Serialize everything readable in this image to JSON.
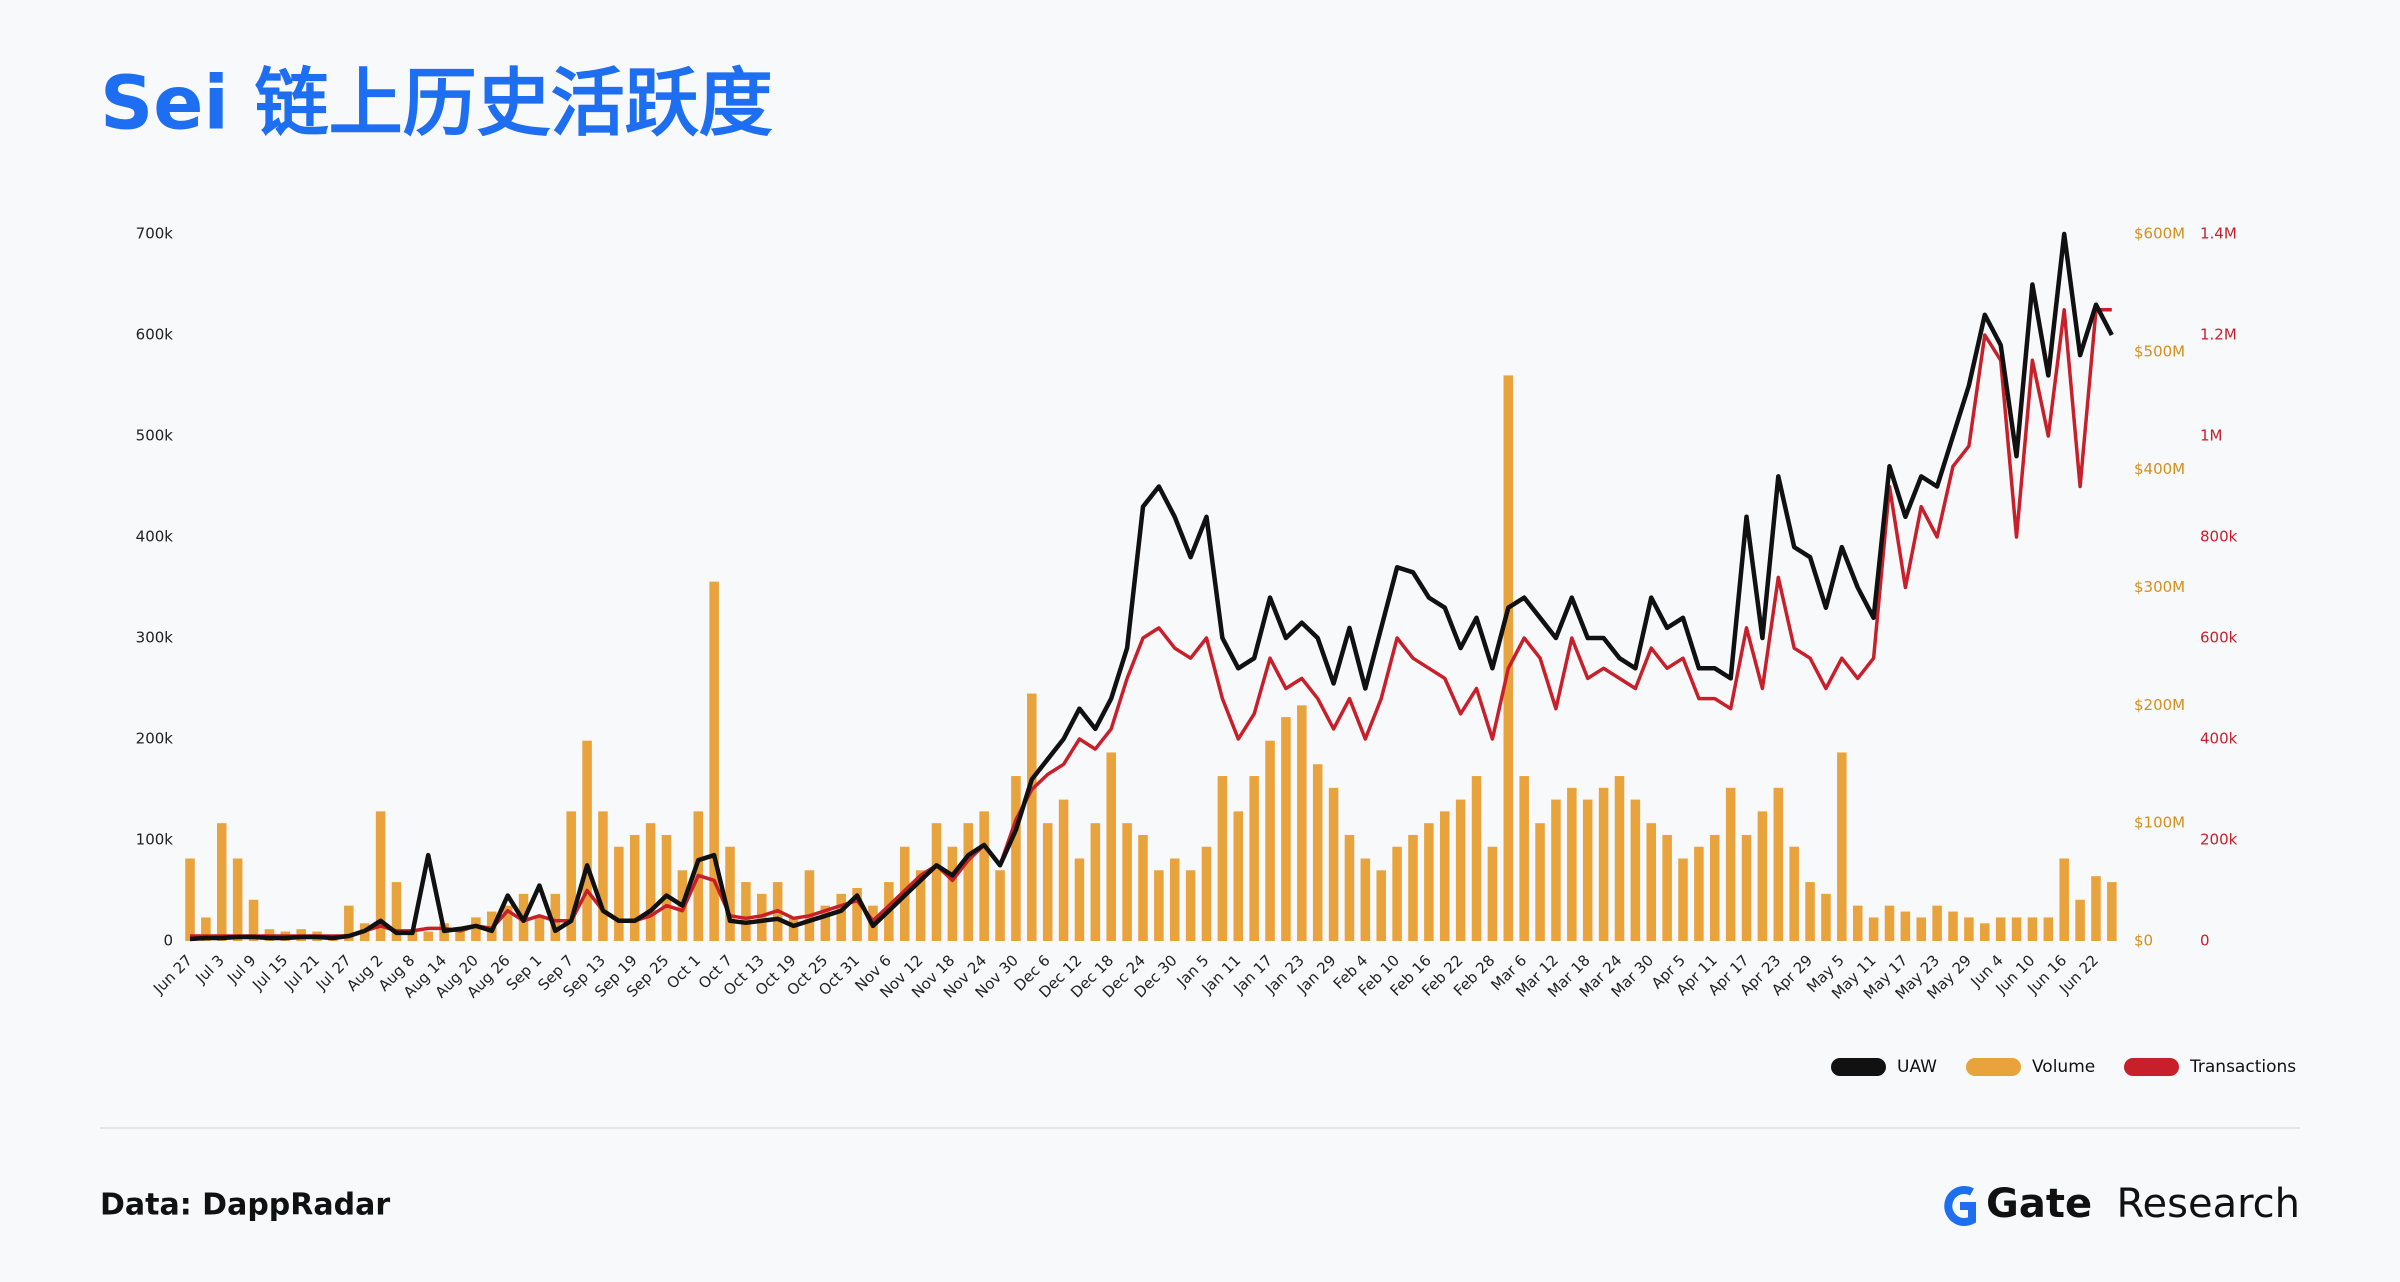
{
  "chart_data": {
    "type": "combo",
    "title": "Sei 链上历史活跃度",
    "categories": [
      "Jun 27",
      null,
      "Jul 3",
      null,
      "Jul 9",
      null,
      "Jul 15",
      null,
      "Jul 21",
      null,
      "Jul 27",
      null,
      "Aug 2",
      null,
      "Aug 8",
      null,
      "Aug 14",
      null,
      "Aug 20",
      null,
      "Aug 26",
      null,
      "Sep 1",
      null,
      "Sep 7",
      null,
      "Sep 13",
      null,
      "Sep 19",
      null,
      "Sep 25",
      null,
      "Oct 1",
      null,
      "Oct 7",
      null,
      "Oct 13",
      null,
      "Oct 19",
      null,
      "Oct 25",
      null,
      "Oct 31",
      null,
      "Nov 6",
      null,
      "Nov 12",
      null,
      "Nov 18",
      null,
      "Nov 24",
      null,
      "Nov 30",
      null,
      "Dec 6",
      null,
      "Dec 12",
      null,
      "Dec 18",
      null,
      "Dec 24",
      null,
      "Dec 30",
      null,
      "Jan 5",
      null,
      "Jan 11",
      null,
      "Jan 17",
      null,
      "Jan 23",
      null,
      "Jan 29",
      null,
      "Feb 4",
      null,
      "Feb 10",
      null,
      "Feb 16",
      null,
      "Feb 22",
      null,
      "Feb 28",
      null,
      "Mar 6",
      null,
      "Mar 12",
      null,
      "Mar 18",
      null,
      "Mar 24",
      null,
      "Mar 30",
      null,
      "Apr 5",
      null,
      "Apr 11",
      null,
      "Apr 17",
      null,
      "Apr 23",
      null,
      "Apr 29",
      null,
      "May 5",
      null,
      "May 11",
      null,
      "May 17",
      null,
      "May 23",
      null,
      "May 29",
      null,
      "Jun 4",
      null,
      "Jun 10",
      null,
      "Jun 16",
      null,
      "Jun 22",
      null
    ],
    "series": [
      {
        "name": "UAW",
        "type": "line",
        "color": "#111111",
        "values": [
          2000,
          3000,
          3000,
          4000,
          4000,
          3000,
          3000,
          4000,
          4000,
          3000,
          5000,
          10000,
          20000,
          8000,
          8000,
          85000,
          10000,
          12000,
          15000,
          10000,
          45000,
          20000,
          55000,
          10000,
          20000,
          75000,
          30000,
          20000,
          20000,
          30000,
          45000,
          35000,
          80000,
          85000,
          20000,
          18000,
          20000,
          22000,
          15000,
          20000,
          25000,
          30000,
          45000,
          15000,
          30000,
          45000,
          60000,
          75000,
          65000,
          85000,
          95000,
          75000,
          110000,
          160000,
          180000,
          200000,
          230000,
          210000,
          240000,
          290000,
          430000,
          450000,
          420000,
          380000,
          420000,
          300000,
          270000,
          280000,
          340000,
          300000,
          315000,
          300000,
          255000,
          310000,
          250000,
          310000,
          370000,
          365000,
          340000,
          330000,
          290000,
          320000,
          270000,
          330000,
          340000,
          320000,
          300000,
          340000,
          300000,
          300000,
          280000,
          270000,
          340000,
          310000,
          320000,
          270000,
          270000,
          260000,
          420000,
          300000,
          460000,
          390000,
          380000,
          330000,
          390000,
          350000,
          320000,
          470000,
          420000,
          460000,
          450000,
          500000,
          550000,
          620000,
          590000,
          480000,
          650000,
          560000,
          700000,
          580000,
          630000,
          600000
        ]
      },
      {
        "name": "Volume",
        "type": "bar",
        "axis": "y2",
        "color": "#e9a33c",
        "values": [
          70000000,
          20000000,
          100000000,
          70000000,
          35000000,
          10000000,
          8000000,
          10000000,
          8000000,
          5000000,
          30000000,
          15000000,
          110000000,
          50000000,
          10000000,
          8000000,
          15000000,
          10000000,
          20000000,
          25000000,
          30000000,
          40000000,
          20000000,
          40000000,
          110000000,
          170000000,
          110000000,
          80000000,
          90000000,
          100000000,
          90000000,
          60000000,
          110000000,
          305000000,
          80000000,
          50000000,
          40000000,
          50000000,
          20000000,
          60000000,
          30000000,
          40000000,
          45000000,
          30000000,
          50000000,
          80000000,
          60000000,
          100000000,
          80000000,
          100000000,
          110000000,
          60000000,
          140000000,
          210000000,
          100000000,
          120000000,
          70000000,
          100000000,
          160000000,
          100000000,
          90000000,
          60000000,
          70000000,
          60000000,
          80000000,
          140000000,
          110000000,
          140000000,
          170000000,
          190000000,
          200000000,
          150000000,
          130000000,
          90000000,
          70000000,
          60000000,
          80000000,
          90000000,
          100000000,
          110000000,
          120000000,
          140000000,
          80000000,
          480000000,
          140000000,
          100000000,
          120000000,
          130000000,
          120000000,
          130000000,
          140000000,
          120000000,
          100000000,
          90000000,
          70000000,
          80000000,
          90000000,
          130000000,
          90000000,
          110000000,
          130000000,
          80000000,
          50000000,
          40000000,
          160000000,
          30000000,
          20000000,
          30000000,
          25000000,
          20000000,
          30000000,
          25000000,
          20000000,
          15000000,
          20000000,
          20000000,
          20000000,
          20000000,
          70000000,
          35000000,
          55000000,
          50000000
        ]
      },
      {
        "name": "Transactions",
        "type": "line",
        "axis": "y3",
        "color": "#c8202a",
        "values": [
          10000,
          10000,
          10000,
          10000,
          10000,
          10000,
          10000,
          10000,
          10000,
          10000,
          10000,
          20000,
          30000,
          20000,
          20000,
          25000,
          25000,
          20000,
          30000,
          25000,
          60000,
          40000,
          50000,
          40000,
          40000,
          100000,
          60000,
          40000,
          40000,
          50000,
          70000,
          60000,
          130000,
          120000,
          50000,
          45000,
          50000,
          60000,
          45000,
          50000,
          60000,
          70000,
          80000,
          40000,
          70000,
          100000,
          130000,
          150000,
          120000,
          160000,
          190000,
          150000,
          240000,
          300000,
          330000,
          350000,
          400000,
          380000,
          420000,
          520000,
          600000,
          620000,
          580000,
          560000,
          600000,
          480000,
          400000,
          450000,
          560000,
          500000,
          520000,
          480000,
          420000,
          480000,
          400000,
          480000,
          600000,
          560000,
          540000,
          520000,
          450000,
          500000,
          400000,
          540000,
          600000,
          560000,
          460000,
          600000,
          520000,
          540000,
          520000,
          500000,
          580000,
          540000,
          560000,
          480000,
          480000,
          460000,
          620000,
          500000,
          720000,
          580000,
          560000,
          500000,
          560000,
          520000,
          560000,
          900000,
          700000,
          860000,
          800000,
          940000,
          980000,
          1200000,
          1150000,
          800000,
          1150000,
          1000000,
          1250000,
          900000,
          1250000,
          1250000
        ]
      }
    ],
    "ylim": [
      0,
      700000
    ],
    "yticks": [
      0,
      {
        "value": 100000,
        "label": "100k"
      },
      {
        "value": 200000,
        "label": "200k"
      },
      {
        "value": 300000,
        "label": "300k"
      },
      {
        "value": 400000,
        "label": "400k"
      },
      {
        "value": 500000,
        "label": "500k"
      },
      {
        "value": 600000,
        "label": "600k"
      },
      {
        "value": 700000,
        "label": "700k"
      }
    ],
    "y2lim": [
      0,
      600000000
    ],
    "y2ticks": [
      {
        "value": 0,
        "label": "$0"
      },
      {
        "value": 100000000,
        "label": "$100M"
      },
      {
        "value": 200000000,
        "label": "$200M"
      },
      {
        "value": 300000000,
        "label": "$300M"
      },
      {
        "value": 400000000,
        "label": "$400M"
      },
      {
        "value": 500000000,
        "label": "$500M"
      },
      {
        "value": 600000000,
        "label": "$600M"
      }
    ],
    "y3lim": [
      0,
      1400000
    ],
    "y3ticks": [
      0,
      {
        "value": 200000,
        "label": "200k"
      },
      {
        "value": 400000,
        "label": "400k"
      },
      {
        "value": 600000,
        "label": "600k"
      },
      {
        "value": 800000,
        "label": "800k"
      },
      {
        "value": 1000000,
        "label": "1M"
      },
      {
        "value": 1200000,
        "label": "1.2M"
      },
      {
        "value": 1400000,
        "label": "1.4M"
      }
    ],
    "grid": false,
    "legend": "bottom-right"
  },
  "footer": {
    "source": "Data: DappRadar",
    "brand": "Gate",
    "brand_suffix": "Research"
  }
}
